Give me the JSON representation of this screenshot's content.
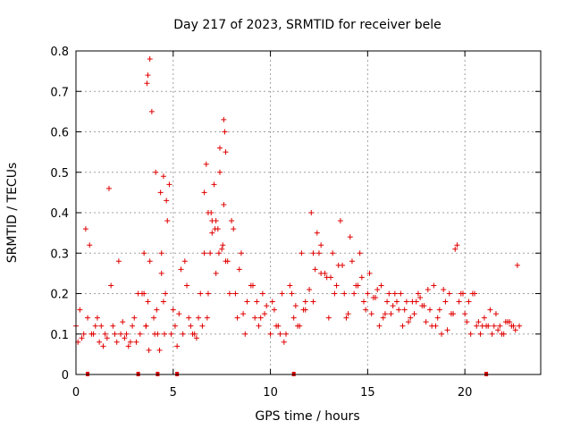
{
  "chart_data": {
    "type": "scatter",
    "title": "Day 217 of 2023, SRMTID for receiver bele",
    "xlabel": "GPS time / hours",
    "ylabel": "SRMTID / TECUs",
    "xlim": [
      0,
      23.9
    ],
    "ylim": [
      0,
      0.8
    ],
    "x_ticks": [
      0,
      5,
      10,
      15,
      20
    ],
    "x_tick_labels": [
      "0",
      "5",
      "10",
      "15",
      "20"
    ],
    "y_ticks": [
      0,
      0.1,
      0.2,
      0.3,
      0.4,
      0.5,
      0.6,
      0.7,
      0.8
    ],
    "y_tick_labels": [
      "0",
      "0.1",
      "0.2",
      "0.3",
      "0.4",
      "0.5",
      "0.6",
      "0.7",
      "0.8"
    ],
    "grid": true,
    "marker": "plus",
    "color": "#e00000",
    "series": [
      {
        "name": "SRMTID",
        "x": [
          0.0,
          0.3,
          0.5,
          0.6,
          0.8,
          1.0,
          1.2,
          1.5,
          1.7,
          1.9,
          2.1,
          2.3,
          2.5,
          2.7,
          2.9,
          3.1,
          3.3,
          3.5,
          3.6,
          3.7,
          3.8,
          3.9,
          4.0,
          4.2,
          4.4,
          4.5,
          4.6,
          4.7,
          4.9,
          5.1,
          5.3,
          5.5,
          5.7,
          5.9,
          6.1,
          6.3,
          6.5,
          6.6,
          6.7,
          6.8,
          6.9,
          7.0,
          7.1,
          7.2,
          7.3,
          7.4,
          7.5,
          7.6,
          7.7,
          7.8,
          8.0,
          8.2,
          8.4,
          8.6,
          8.8,
          9.0,
          9.2,
          9.4,
          9.6,
          9.8,
          10.0,
          10.2,
          10.4,
          10.6,
          10.8,
          11.0,
          11.2,
          11.4,
          11.6,
          11.8,
          12.0,
          12.2,
          12.4,
          12.6,
          12.8,
          13.0,
          13.2,
          13.4,
          13.6,
          13.8,
          14.0,
          14.2,
          14.4,
          14.6,
          14.8,
          15.0,
          15.2,
          15.4,
          15.6,
          15.8,
          16.0,
          16.2,
          16.4,
          16.6,
          16.8,
          17.0,
          17.2,
          17.4,
          17.6,
          17.8,
          18.0,
          18.2,
          18.4,
          18.6,
          18.8,
          19.0,
          19.2,
          19.4,
          19.6,
          19.8,
          20.0,
          20.2,
          20.4,
          20.6,
          20.8,
          21.0,
          21.2,
          21.4,
          21.6,
          21.8,
          22.0,
          22.2,
          22.4,
          22.6,
          22.8,
          0.1,
          0.4,
          0.7,
          1.1,
          1.6,
          1.8,
          2.2,
          2.6,
          3.0,
          3.4,
          3.5,
          3.6,
          3.7,
          4.1,
          4.3,
          4.4,
          4.5,
          4.8,
          5.0,
          5.4,
          5.8,
          6.2,
          6.6,
          6.8,
          7.0,
          7.2,
          7.4,
          7.6,
          8.1,
          8.5,
          9.1,
          9.5,
          10.1,
          10.5,
          11.1,
          11.5,
          11.8,
          12.1,
          12.3,
          12.5,
          12.9,
          13.3,
          13.7,
          14.1,
          14.5,
          14.9,
          15.1,
          15.5,
          15.9,
          16.3,
          16.7,
          17.1,
          17.5,
          17.9,
          18.3,
          18.7,
          19.1,
          19.5,
          19.7,
          20.1,
          20.5,
          20.9,
          21.3,
          21.7,
          22.1,
          22.5,
          22.7,
          0.2,
          0.9,
          1.3,
          1.4,
          2.0,
          2.4,
          2.8,
          3.2,
          3.65,
          3.75,
          3.8,
          4.05,
          4.15,
          4.35,
          4.55,
          4.65,
          5.2,
          5.6,
          6.0,
          6.4,
          6.75,
          6.95,
          7.15,
          7.35,
          7.55,
          7.65,
          7.7,
          7.9,
          8.3,
          8.7,
          9.3,
          9.7,
          10.3,
          10.7,
          11.3,
          11.7,
          12.2,
          12.6,
          13.1,
          13.5,
          13.9,
          14.3,
          14.7,
          15.3,
          15.7,
          16.1,
          16.5,
          16.9,
          17.3,
          17.7,
          18.1,
          18.5,
          18.9,
          19.3,
          19.9,
          20.3,
          20.7,
          21.1,
          21.5,
          21.9,
          22.3
        ],
        "y": [
          0.12,
          0.09,
          0.36,
          0.14,
          0.1,
          0.12,
          0.08,
          0.1,
          0.46,
          0.12,
          0.08,
          0.1,
          0.09,
          0.07,
          0.12,
          0.08,
          0.1,
          0.2,
          0.12,
          0.18,
          0.78,
          0.65,
          0.14,
          0.1,
          0.25,
          0.49,
          0.2,
          0.38,
          0.1,
          0.12,
          0.15,
          0.1,
          0.22,
          0.12,
          0.1,
          0.14,
          0.12,
          0.45,
          0.52,
          0.4,
          0.3,
          0.35,
          0.47,
          0.38,
          0.36,
          0.5,
          0.31,
          0.63,
          0.55,
          0.28,
          0.38,
          0.2,
          0.26,
          0.15,
          0.18,
          0.22,
          0.14,
          0.12,
          0.2,
          0.17,
          0.1,
          0.16,
          0.12,
          0.2,
          0.1,
          0.22,
          0.14,
          0.12,
          0.3,
          0.16,
          0.21,
          0.18,
          0.35,
          0.32,
          0.25,
          0.14,
          0.3,
          0.22,
          0.38,
          0.2,
          0.15,
          0.28,
          0.22,
          0.3,
          0.18,
          0.2,
          0.15,
          0.19,
          0.12,
          0.14,
          0.18,
          0.15,
          0.2,
          0.16,
          0.12,
          0.18,
          0.14,
          0.15,
          0.2,
          0.17,
          0.13,
          0.16,
          0.22,
          0.14,
          0.1,
          0.18,
          0.2,
          0.15,
          0.32,
          0.2,
          0.15,
          0.18,
          0.2,
          0.12,
          0.1,
          0.14,
          0.12,
          0.1,
          0.15,
          0.12,
          0.1,
          0.13,
          0.12,
          0.11,
          0.12,
          0.08,
          0.1,
          0.32,
          0.14,
          0.09,
          0.22,
          0.28,
          0.1,
          0.14,
          0.2,
          0.3,
          0.12,
          0.74,
          0.5,
          0.06,
          0.3,
          0.18,
          0.47,
          0.16,
          0.26,
          0.14,
          0.09,
          0.3,
          0.2,
          0.38,
          0.25,
          0.56,
          0.42,
          0.36,
          0.3,
          0.22,
          0.14,
          0.18,
          0.1,
          0.2,
          0.12,
          0.18,
          0.4,
          0.26,
          0.3,
          0.24,
          0.2,
          0.27,
          0.34,
          0.22,
          0.16,
          0.25,
          0.21,
          0.15,
          0.17,
          0.2,
          0.13,
          0.18,
          0.17,
          0.12,
          0.16,
          0.11,
          0.31,
          0.18,
          0.13,
          0.2,
          0.12,
          0.16,
          0.11,
          0.13,
          0.12,
          0.27,
          0.16,
          0.1,
          0.12,
          0.07,
          0.1,
          0.13,
          0.08,
          0.2,
          0.72,
          0.06,
          0.28,
          0.1,
          0.16,
          0.45,
          0.1,
          0.43,
          0.07,
          0.28,
          0.1,
          0.2,
          0.14,
          0.4,
          0.36,
          0.3,
          0.32,
          0.6,
          0.28,
          0.2,
          0.14,
          0.1,
          0.18,
          0.15,
          0.12,
          0.08,
          0.17,
          0.16,
          0.3,
          0.25,
          0.24,
          0.27,
          0.14,
          0.2,
          0.24,
          0.19,
          0.22,
          0.2,
          0.18,
          0.16,
          0.18,
          0.19,
          0.21,
          0.12,
          0.21,
          0.15,
          0.2,
          0.1,
          0.13,
          0.12,
          0.12,
          0.1,
          0.13
        ]
      }
    ],
    "outliers_at_zero_x": [
      0.6,
      3.2,
      4.2,
      5.2,
      11.2,
      21.1
    ]
  }
}
